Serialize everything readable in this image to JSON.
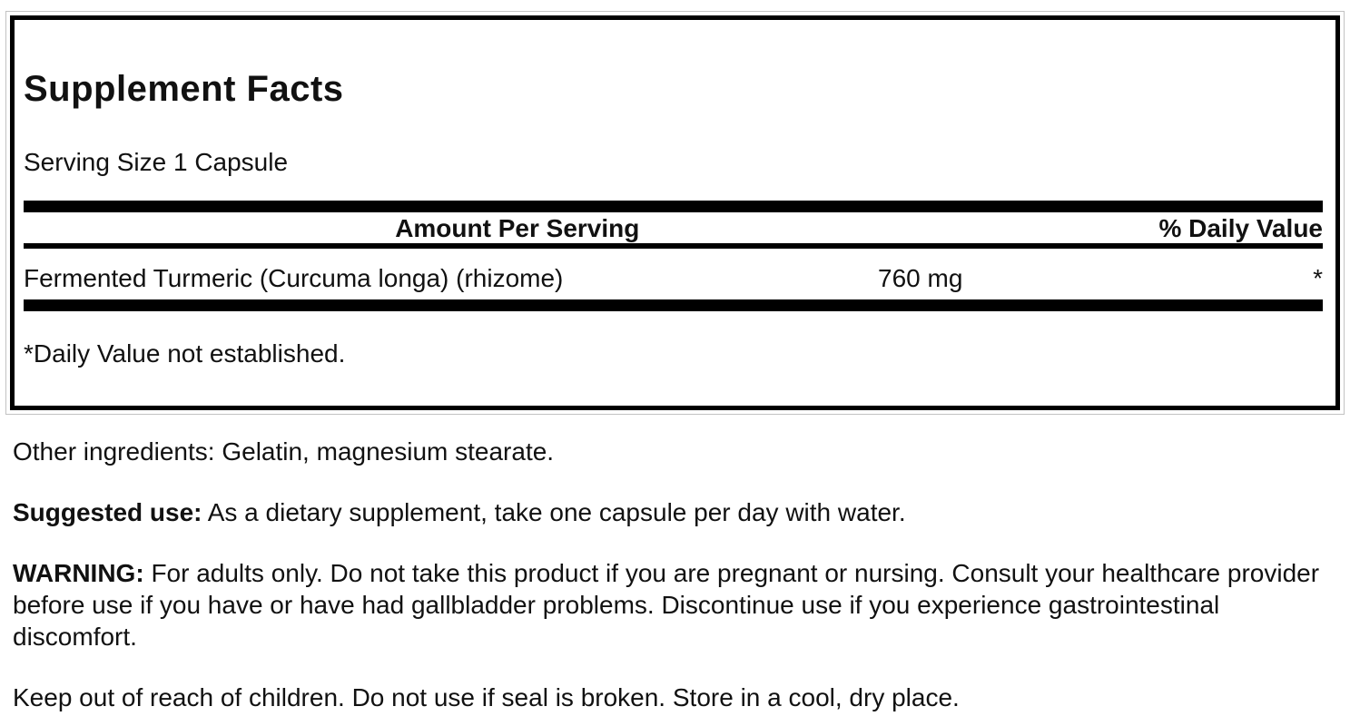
{
  "supplement_facts": {
    "title": "Supplement Facts",
    "serving_size": "Serving Size 1 Capsule",
    "header": {
      "amount_per_serving": "Amount Per Serving",
      "percent_daily_value": "% Daily Value"
    },
    "rows": [
      {
        "name": "Fermented Turmeric (Curcuma longa) (rhizome)",
        "amount": "760 mg",
        "daily_value": "*"
      }
    ],
    "footnote": "*Daily Value not established."
  },
  "details": {
    "other_ingredients": "Other ingredients: Gelatin, magnesium stearate.",
    "suggested_use_label": "Suggested use:",
    "suggested_use_text": "As a dietary supplement, take one capsule per day with water.",
    "warning_label": "WARNING:",
    "warning_text": "For adults only. Do not take this product if you are pregnant or nursing. Consult your healthcare provider before use if you have or have had gallbladder problems. Discontinue use if you experience gastrointestinal discomfort.",
    "storage": "Keep out of reach of children. Do not use if seal is broken. Store in a cool, dry place."
  },
  "colors": {
    "text": "#111111",
    "rule": "#000000",
    "outer_border": "#c2c2c2",
    "background": "#ffffff"
  }
}
